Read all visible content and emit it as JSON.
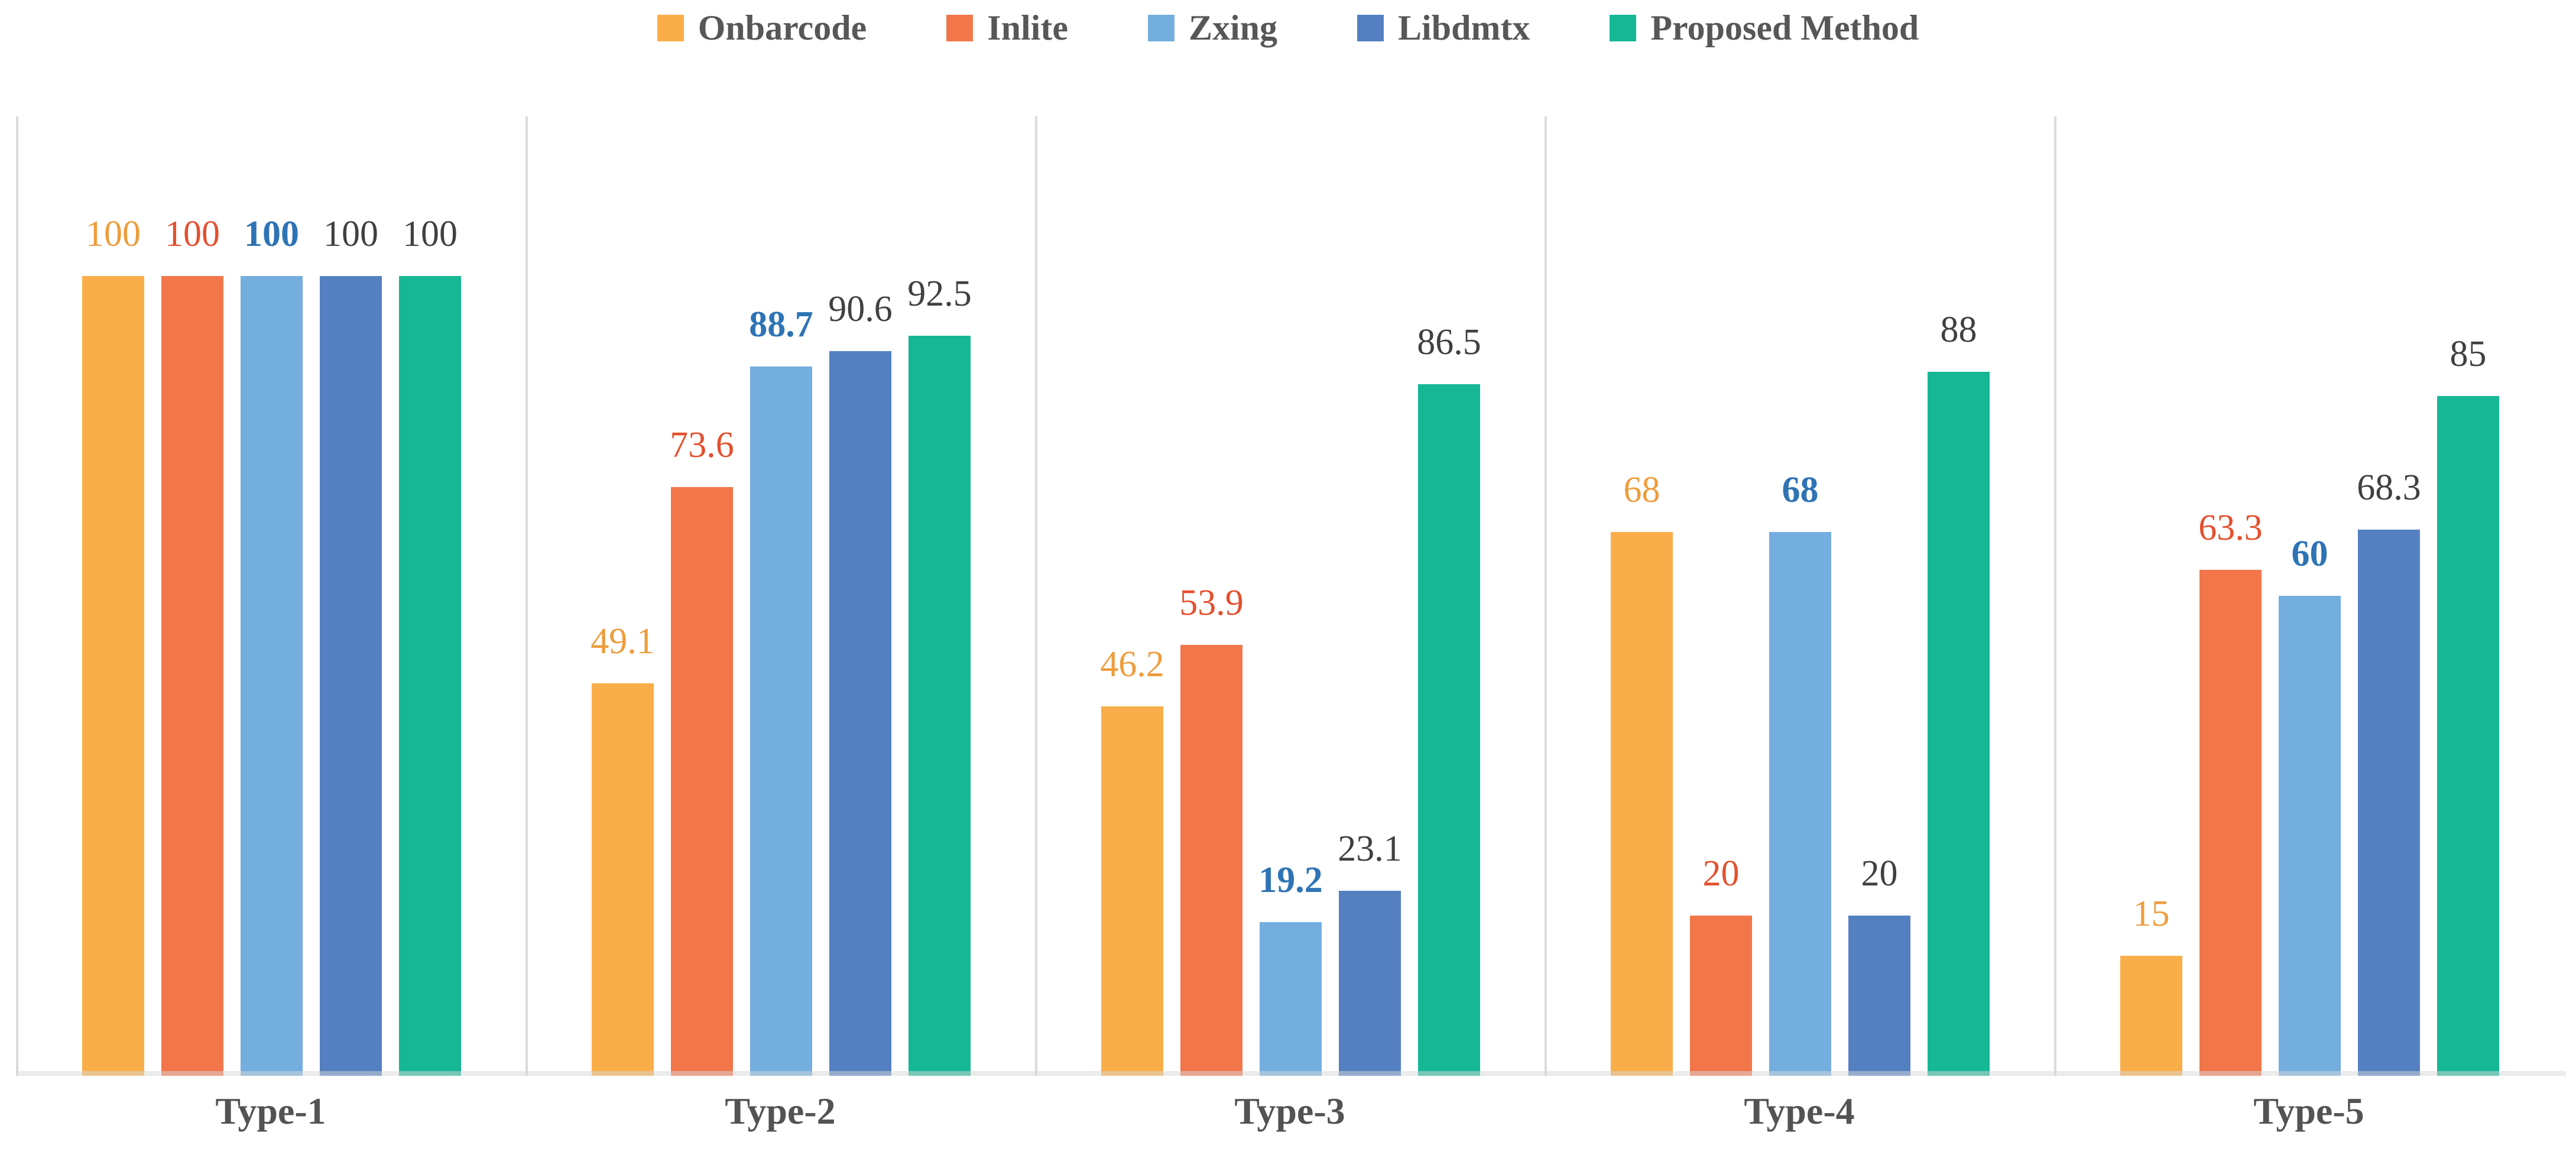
{
  "chart_data": {
    "type": "bar",
    "title": "",
    "categories": [
      "Type-1",
      "Type-2",
      "Type-3",
      "Type-4",
      "Type-5"
    ],
    "series": [
      {
        "name": "Onbarcode",
        "color": "#FAAE49",
        "label_color": "#EE9D3C",
        "bold_labels": false,
        "values": [
          100,
          49.1,
          46.2,
          68,
          15
        ]
      },
      {
        "name": "Inlite",
        "color": "#F2764A",
        "label_color": "#E4502E",
        "bold_labels": false,
        "values": [
          100,
          73.6,
          53.9,
          20,
          63.3
        ]
      },
      {
        "name": "Zxing",
        "color": "#73AEDF",
        "label_color": "#2E74B5",
        "bold_labels": true,
        "values": [
          100,
          88.7,
          19.2,
          68,
          60
        ]
      },
      {
        "name": "Libdmtx",
        "color": "#5480C1",
        "label_color": "#404040",
        "bold_labels": false,
        "values": [
          100,
          90.6,
          23.1,
          20,
          68.3
        ]
      },
      {
        "name": "Proposed Method",
        "color": "#15B795",
        "label_color": "#404040",
        "bold_labels": false,
        "values": [
          100,
          92.5,
          86.5,
          88,
          85
        ]
      }
    ],
    "ylim": [
      0,
      100
    ],
    "value_labels": true,
    "grid": false,
    "legend_position": "top",
    "panel_separators": true,
    "separator_color": "#DBDBDB",
    "legend_text_color": "#575757",
    "category_label_color": "#535353"
  }
}
